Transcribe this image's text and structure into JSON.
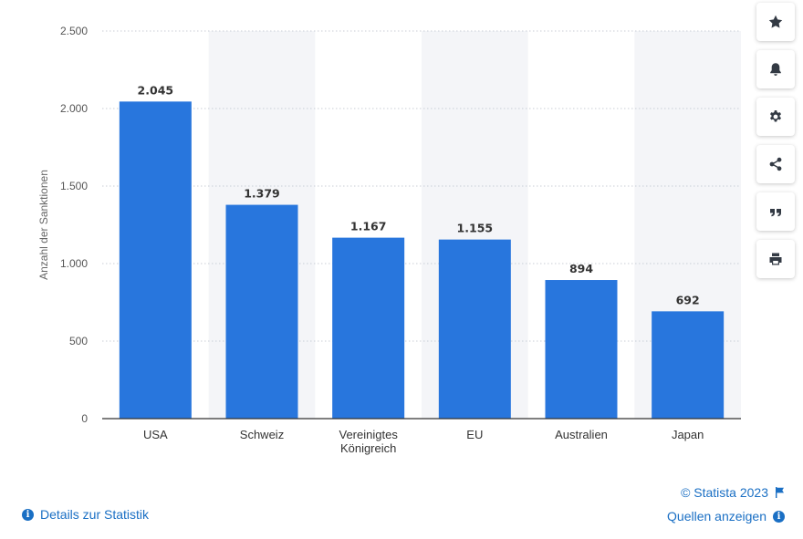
{
  "chart_data": {
    "type": "bar",
    "categories": [
      "USA",
      "Schweiz",
      "Vereinigtes Königreich",
      "EU",
      "Australien",
      "Japan"
    ],
    "category_lines": [
      [
        "USA"
      ],
      [
        "Schweiz"
      ],
      [
        "Vereinigtes",
        "Königreich"
      ],
      [
        "EU"
      ],
      [
        "Australien"
      ],
      [
        "Japan"
      ]
    ],
    "values": [
      2045,
      1379,
      1167,
      1155,
      894,
      692
    ],
    "value_labels": [
      "2.045",
      "1.379",
      "1.167",
      "1.155",
      "894",
      "692"
    ],
    "title": "",
    "xlabel": "",
    "ylabel": "Anzahl der Sanktionen",
    "ylim": [
      0,
      2500
    ],
    "yticks": [
      0,
      500,
      1000,
      1500,
      2000,
      2500
    ],
    "ytick_labels": [
      "0",
      "500",
      "1.000",
      "1.500",
      "2.000",
      "2.500"
    ],
    "grid": true,
    "bar_color": "#2876dd"
  },
  "toolbar": {
    "buttons": [
      {
        "name": "favorite",
        "icon": "star-icon"
      },
      {
        "name": "notification",
        "icon": "bell-icon"
      },
      {
        "name": "settings",
        "icon": "gear-icon"
      },
      {
        "name": "share",
        "icon": "share-icon"
      },
      {
        "name": "cite",
        "icon": "quote-icon"
      },
      {
        "name": "print",
        "icon": "print-icon"
      }
    ]
  },
  "footer": {
    "copyright": "© Statista 2023",
    "sources_link": "Quellen anzeigen",
    "details_link": "Details zur Statistik",
    "info_glyph": "i"
  },
  "colors": {
    "accent": "#1a6fc4",
    "bar": "#2876dd",
    "band": "#f4f5f8"
  }
}
